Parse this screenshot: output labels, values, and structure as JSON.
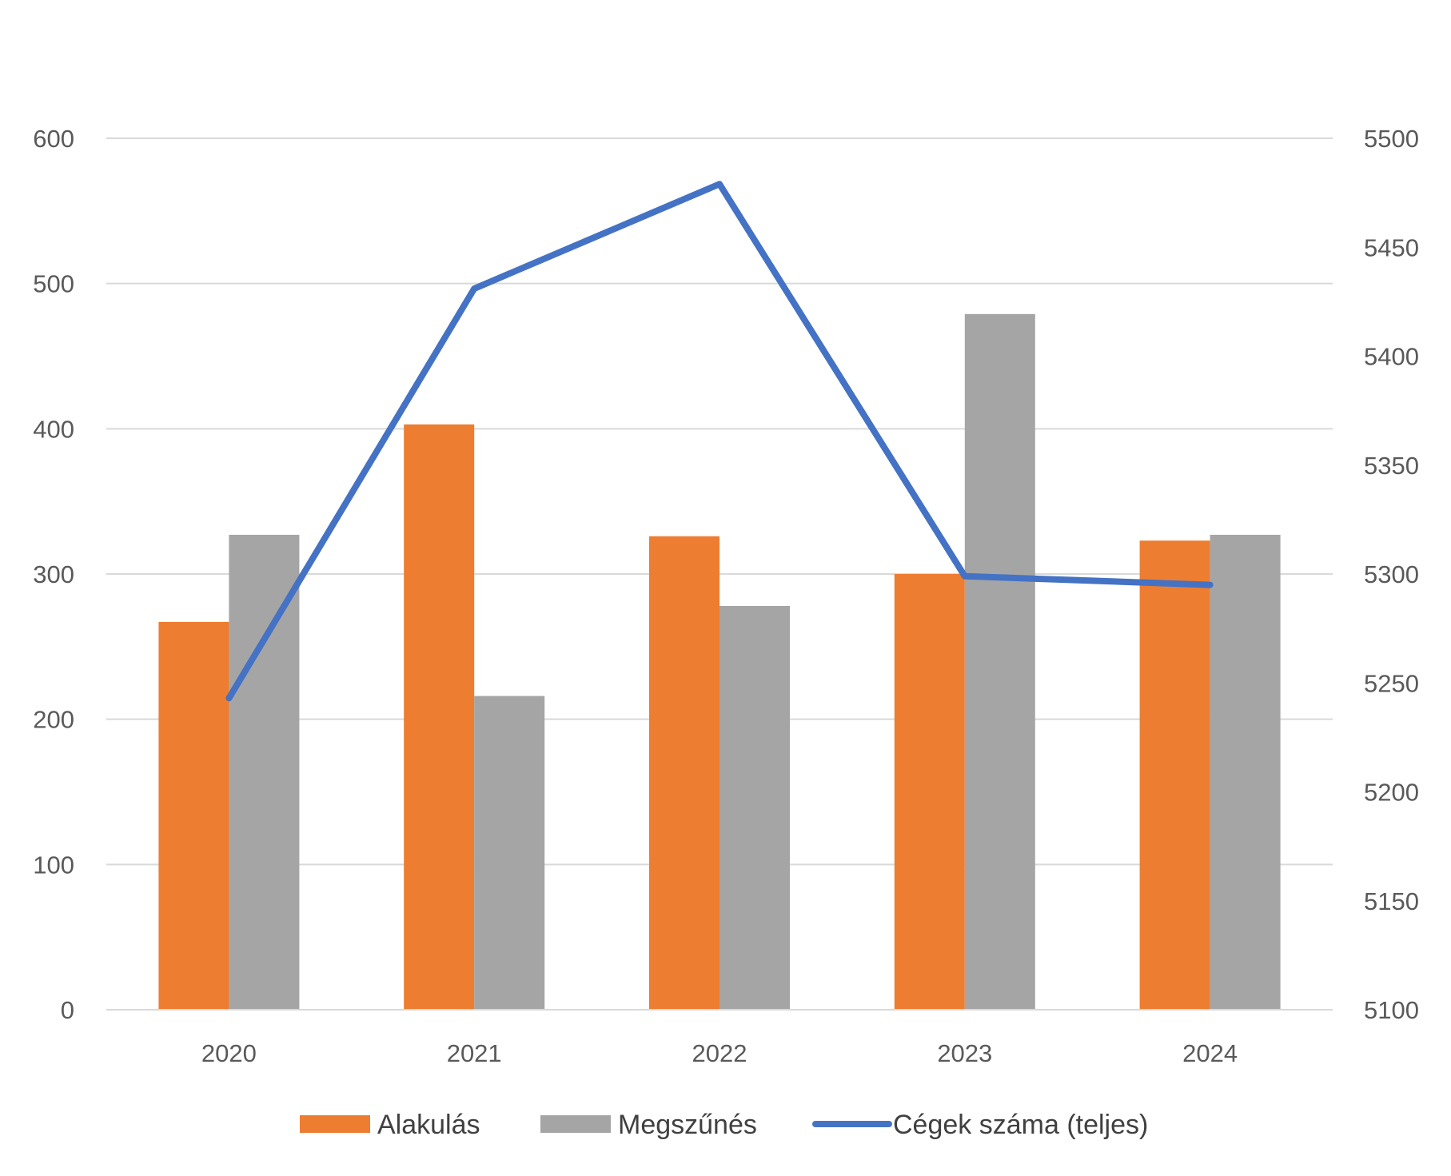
{
  "chart_data": {
    "type": "bar",
    "categories": [
      "2020",
      "2021",
      "2022",
      "2023",
      "2024"
    ],
    "series": [
      {
        "name": "Alakulás",
        "type": "bar",
        "axis": "left",
        "color": "#ED7D31",
        "values": [
          267,
          403,
          326,
          300,
          323
        ]
      },
      {
        "name": "Megszűnés",
        "type": "bar",
        "axis": "left",
        "color": "#A5A5A5",
        "values": [
          327,
          216,
          278,
          479,
          327
        ]
      },
      {
        "name": "Cégek száma (teljes)",
        "type": "line",
        "axis": "right",
        "color": "#4472C4",
        "values": [
          5243,
          5431,
          5479,
          5299,
          5295
        ]
      }
    ],
    "y_left": {
      "min": 0,
      "max": 600,
      "step": 100,
      "ticks": [
        "0",
        "100",
        "200",
        "300",
        "400",
        "500",
        "600"
      ]
    },
    "y_right": {
      "min": 5100,
      "max": 5500,
      "step": 50,
      "ticks": [
        "5100",
        "5150",
        "5200",
        "5250",
        "5300",
        "5350",
        "5400",
        "5450",
        "5500"
      ]
    },
    "grid": true,
    "legend_position": "bottom",
    "gridline_color": "#D9D9D9"
  }
}
